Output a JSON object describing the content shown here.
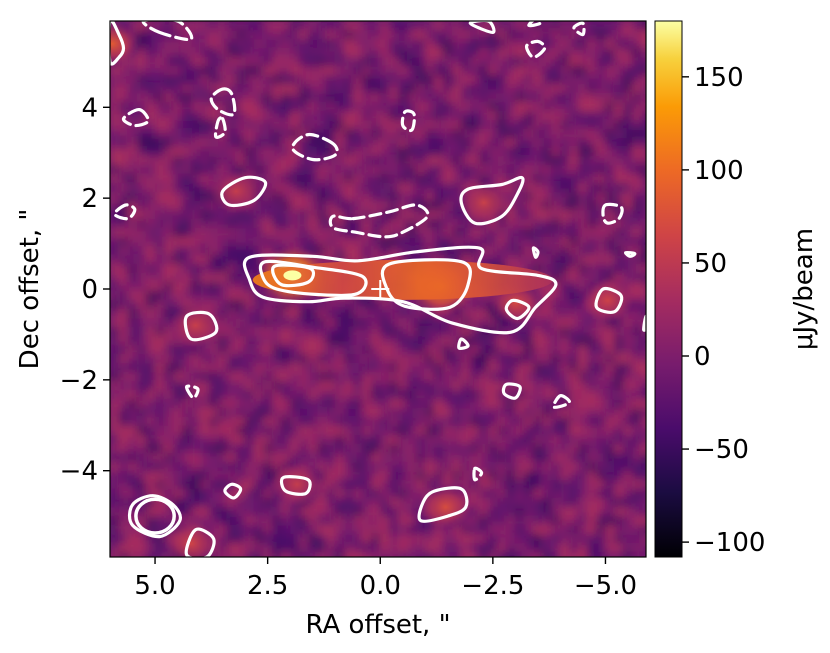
{
  "chart_data": {
    "type": "heatmap",
    "title": "",
    "xlabel": "RA offset, \"",
    "ylabel": "Dec offset, \"",
    "xlim": [
      6.0,
      -5.9
    ],
    "ylim": [
      -5.9,
      5.9
    ],
    "x_ticks": [
      {
        "value": 5.0,
        "label": "5.0"
      },
      {
        "value": 2.5,
        "label": "2.5"
      },
      {
        "value": 0.0,
        "label": "0.0"
      },
      {
        "value": -2.5,
        "label": "−2.5"
      },
      {
        "value": -5.0,
        "label": "−5.0"
      }
    ],
    "y_ticks": [
      {
        "value": 4,
        "label": "4"
      },
      {
        "value": 2,
        "label": "2"
      },
      {
        "value": 0,
        "label": "0"
      },
      {
        "value": -2,
        "label": "−2"
      },
      {
        "value": -4,
        "label": "−4"
      }
    ],
    "colorbar": {
      "label": "μJy/beam",
      "colormap": "inferno",
      "range": [
        -108,
        180
      ],
      "ticks": [
        {
          "value": 150,
          "label": "150"
        },
        {
          "value": 100,
          "label": "100"
        },
        {
          "value": 50,
          "label": "50"
        },
        {
          "value": 0,
          "label": "0"
        },
        {
          "value": -50,
          "label": "−50"
        },
        {
          "value": -100,
          "label": "−100"
        }
      ]
    },
    "source_marker": {
      "x": 0.0,
      "y": 0.0,
      "symbol": "+"
    },
    "emission_peaks": [
      {
        "x": 1.95,
        "y": 0.3,
        "flux": 178
      },
      {
        "x": -1.35,
        "y": 0.05,
        "flux": 128
      },
      {
        "x": -3.0,
        "y": -0.3,
        "flux": 70
      },
      {
        "x": -2.3,
        "y": 1.9,
        "flux": 60
      },
      {
        "x": -5.05,
        "y": -0.25,
        "flux": 62
      },
      {
        "x": 4.1,
        "y": -0.8,
        "flux": 58
      },
      {
        "x": -1.45,
        "y": -4.8,
        "flux": 72
      },
      {
        "x": 5.95,
        "y": 5.4,
        "flux": 85
      },
      {
        "x": 3.2,
        "y": 2.15,
        "flux": 55
      },
      {
        "x": 4.2,
        "y": -5.6,
        "flux": 65
      },
      {
        "x": 1.85,
        "y": -4.3,
        "flux": 55
      }
    ],
    "contours": [
      {
        "level": "positive",
        "style": "solid",
        "paths": [
          [
            [
              2.9,
              0.7
            ],
            [
              1.5,
              0.72
            ],
            [
              0.5,
              0.62
            ],
            [
              -0.8,
              0.82
            ],
            [
              -2.2,
              0.9
            ],
            [
              -2.25,
              0.45
            ],
            [
              -3.5,
              0.3
            ],
            [
              -3.9,
              0.1
            ],
            [
              -3.45,
              -0.4
            ],
            [
              -2.9,
              -0.95
            ],
            [
              -1.6,
              -0.75
            ],
            [
              -0.5,
              -0.28
            ],
            [
              0.8,
              -0.2
            ],
            [
              1.6,
              -0.28
            ],
            [
              2.6,
              -0.18
            ],
            [
              2.9,
              0.2
            ]
          ],
          [
            [
              2.55,
              0.6
            ],
            [
              1.5,
              0.48
            ],
            [
              0.4,
              0.28
            ],
            [
              0.5,
              -0.1
            ],
            [
              1.4,
              -0.12
            ],
            [
              2.3,
              0.0
            ],
            [
              2.6,
              0.25
            ]
          ],
          [
            [
              -0.2,
              0.55
            ],
            [
              -1.8,
              0.6
            ],
            [
              -1.95,
              0.1
            ],
            [
              -1.55,
              -0.4
            ],
            [
              -0.55,
              -0.38
            ],
            [
              -0.15,
              0.0
            ]
          ],
          [
            [
              2.35,
              0.5
            ],
            [
              2.2,
              0.1
            ],
            [
              1.6,
              0.15
            ],
            [
              1.55,
              0.45
            ]
          ],
          [
            [
              -1.95,
              2.2
            ],
            [
              -2.7,
              2.3
            ],
            [
              -3.15,
              2.45
            ],
            [
              -3.05,
              2.1
            ],
            [
              -2.7,
              1.6
            ],
            [
              -2.1,
              1.45
            ],
            [
              -1.8,
              1.9
            ]
          ],
          [
            [
              3.5,
              2.15
            ],
            [
              3.0,
              2.45
            ],
            [
              2.55,
              2.35
            ],
            [
              2.8,
              1.95
            ],
            [
              3.35,
              1.85
            ]
          ],
          [
            [
              4.3,
              -0.6
            ],
            [
              3.8,
              -0.55
            ],
            [
              3.65,
              -0.95
            ],
            [
              4.2,
              -1.1
            ]
          ],
          [
            [
              -4.95,
              0.0
            ],
            [
              -5.35,
              -0.15
            ],
            [
              -5.2,
              -0.5
            ],
            [
              -4.8,
              -0.4
            ]
          ],
          [
            [
              -2.95,
              -0.25
            ],
            [
              -3.3,
              -0.4
            ],
            [
              -3.05,
              -0.65
            ],
            [
              -2.8,
              -0.45
            ]
          ],
          [
            [
              -2.8,
              -2.1
            ],
            [
              -3.1,
              -2.15
            ],
            [
              -3.0,
              -2.4
            ],
            [
              -2.75,
              -2.3
            ]
          ],
          [
            [
              -1.2,
              -4.45
            ],
            [
              -1.8,
              -4.4
            ],
            [
              -1.9,
              -4.8
            ],
            [
              -1.5,
              -5.0
            ],
            [
              -0.9,
              -5.1
            ],
            [
              -0.95,
              -4.7
            ]
          ],
          [
            [
              2.15,
              -4.15
            ],
            [
              1.6,
              -4.2
            ],
            [
              1.65,
              -4.5
            ],
            [
              2.1,
              -4.45
            ]
          ],
          [
            [
              3.3,
              -4.3
            ],
            [
              3.1,
              -4.4
            ],
            [
              3.25,
              -4.6
            ],
            [
              3.45,
              -4.45
            ]
          ],
          [
            [
              5.05,
              -4.55
            ],
            [
              4.6,
              -4.75
            ],
            [
              4.45,
              -5.1
            ],
            [
              4.9,
              -5.45
            ],
            [
              5.5,
              -5.2
            ],
            [
              5.5,
              -4.75
            ]
          ],
          [
            [
              4.1,
              -5.3
            ],
            [
              3.7,
              -5.5
            ],
            [
              3.85,
              -5.9
            ],
            [
              4.3,
              -5.85
            ]
          ],
          [
            [
              5.8,
              5.6
            ],
            [
              6.0,
              5.9
            ],
            [
              6.0,
              5.0
            ],
            [
              5.8,
              5.1
            ],
            [
              5.7,
              5.3
            ]
          ],
          [
            [
              -2.4,
              5.9
            ],
            [
              -2.5,
              5.65
            ],
            [
              -2.0,
              5.85
            ]
          ],
          [
            [
              -5.45,
              0.8
            ],
            [
              -5.65,
              0.78
            ],
            [
              -5.55,
              0.72
            ]
          ],
          [
            [
              -5.9,
              -0.6
            ],
            [
              -5.85,
              -0.9
            ],
            [
              -5.95,
              -0.8
            ]
          ],
          [
            [
              -1.8,
              -1.1
            ],
            [
              -1.95,
              -1.25
            ],
            [
              -1.75,
              -1.3
            ]
          ],
          [
            [
              -3.4,
              0.9
            ],
            [
              -3.5,
              0.82
            ],
            [
              -3.45,
              0.7
            ]
          ]
        ]
      },
      {
        "level": "negative",
        "style": "dashed",
        "paths": [
          [
            [
              0.6,
              1.55
            ],
            [
              -0.2,
              1.7
            ],
            [
              -0.8,
              1.85
            ],
            [
              -1.05,
              1.6
            ],
            [
              -0.5,
              1.25
            ],
            [
              -0.1,
              1.15
            ],
            [
              0.55,
              1.25
            ],
            [
              1.05,
              1.35
            ],
            [
              1.05,
              1.6
            ]
          ],
          [
            [
              1.05,
              3.2
            ],
            [
              1.6,
              3.4
            ],
            [
              1.95,
              3.1
            ],
            [
              1.5,
              2.85
            ],
            [
              1.0,
              2.95
            ]
          ],
          [
            [
              3.5,
              4.4
            ],
            [
              3.3,
              4.3
            ],
            [
              3.25,
              3.85
            ],
            [
              3.6,
              3.95
            ],
            [
              3.75,
              4.2
            ]
          ],
          [
            [
              3.5,
              3.75
            ],
            [
              3.45,
              3.45
            ],
            [
              3.65,
              3.35
            ],
            [
              3.6,
              3.7
            ]
          ],
          [
            [
              5.35,
              3.95
            ],
            [
              5.7,
              3.75
            ],
            [
              5.45,
              3.6
            ],
            [
              5.15,
              3.7
            ]
          ],
          [
            [
              5.65,
              1.85
            ],
            [
              5.9,
              1.65
            ],
            [
              5.6,
              1.55
            ],
            [
              5.45,
              1.75
            ]
          ],
          [
            [
              -0.55,
              3.9
            ],
            [
              -0.75,
              3.85
            ],
            [
              -0.7,
              3.5
            ],
            [
              -0.5,
              3.6
            ]
          ],
          [
            [
              -5.0,
              1.85
            ],
            [
              -5.35,
              1.8
            ],
            [
              -5.3,
              1.55
            ],
            [
              -5.05,
              1.45
            ],
            [
              -4.95,
              1.6
            ]
          ],
          [
            [
              4.9,
              5.65
            ],
            [
              4.2,
              5.5
            ],
            [
              4.5,
              5.9
            ],
            [
              5.25,
              5.9
            ]
          ],
          [
            [
              -3.25,
              5.35
            ],
            [
              -3.4,
              5.1
            ],
            [
              -3.65,
              5.3
            ],
            [
              -3.5,
              5.45
            ]
          ],
          [
            [
              -4.3,
              5.75
            ],
            [
              -4.5,
              5.85
            ],
            [
              -4.5,
              5.6
            ]
          ],
          [
            [
              -3.3,
              5.8
            ],
            [
              -3.55,
              5.85
            ],
            [
              -3.45,
              5.95
            ]
          ],
          [
            [
              -4.0,
              -2.35
            ],
            [
              -4.2,
              -2.5
            ],
            [
              -3.85,
              -2.6
            ]
          ],
          [
            [
              -2.1,
              -3.95
            ],
            [
              -2.25,
              -4.05
            ],
            [
              -2.1,
              -4.2
            ]
          ],
          [
            [
              4.3,
              -2.15
            ],
            [
              4.15,
              -2.4
            ],
            [
              4.05,
              -2.2
            ]
          ]
        ]
      }
    ],
    "beam_ellipse": {
      "x": 5.0,
      "y": -5.0,
      "major_arcsec": 0.85,
      "minor_arcsec": 0.75
    }
  }
}
